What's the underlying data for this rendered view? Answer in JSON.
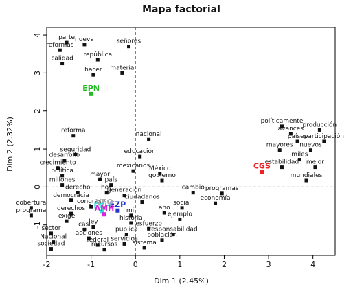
{
  "chart_data": {
    "type": "scatter",
    "title": "Mapa factorial",
    "xlabel": "Dim 1 (2.45%)",
    "ylabel": "Dim 2 (2.32%)",
    "xlim": [
      -2,
      4.5
    ],
    "ylim": [
      -1.8,
      4.2
    ],
    "xticks": [
      "-2",
      "-1",
      "0",
      "1",
      "2",
      "3",
      "4"
    ],
    "yticks": [
      "-1",
      "0",
      "1",
      "2",
      "3",
      "4"
    ],
    "reference_lines": {
      "x": 0,
      "y": 0,
      "style": "dashed"
    },
    "words": [
      {
        "label": "parte",
        "x": -1.55,
        "y": 3.8
      },
      {
        "label": "nueva",
        "x": -1.15,
        "y": 3.75
      },
      {
        "label": "señores",
        "x": -0.15,
        "y": 3.7
      },
      {
        "label": "reformas",
        "x": -1.7,
        "y": 3.6
      },
      {
        "label": "república",
        "x": -0.85,
        "y": 3.35
      },
      {
        "label": "calidad",
        "x": -1.65,
        "y": 3.25
      },
      {
        "label": "hacer",
        "x": -0.95,
        "y": 2.95
      },
      {
        "label": "materia",
        "x": -0.3,
        "y": 3.0
      },
      {
        "label": "reforma",
        "x": -1.4,
        "y": 1.35
      },
      {
        "label": "nacional",
        "x": 0.3,
        "y": 1.25
      },
      {
        "label": "seguridad",
        "x": -1.35,
        "y": 0.85
      },
      {
        "label": "educación",
        "x": 0.1,
        "y": 0.8
      },
      {
        "label": "desarrollo",
        "x": -1.6,
        "y": 0.7
      },
      {
        "label": "crecimiento",
        "x": -1.75,
        "y": 0.5
      },
      {
        "label": "mexicanos",
        "x": -0.05,
        "y": 0.42
      },
      {
        "label": "política",
        "x": -1.65,
        "y": 0.3
      },
      {
        "label": "México",
        "x": 0.55,
        "y": 0.35
      },
      {
        "label": "mayor",
        "x": -0.8,
        "y": 0.2
      },
      {
        "label": "gobierno",
        "x": 0.6,
        "y": 0.17
      },
      {
        "label": "millones",
        "x": -1.65,
        "y": 0.05
      },
      {
        "label": "país",
        "x": -0.55,
        "y": 0.05
      },
      {
        "label": "derecho",
        "x": -1.3,
        "y": -0.15
      },
      {
        "label": "hoy",
        "x": -0.65,
        "y": -0.15
      },
      {
        "label": "cambio",
        "x": 1.3,
        "y": -0.15
      },
      {
        "label": "programas",
        "x": 1.95,
        "y": -0.17
      },
      {
        "label": "generación",
        "x": -0.25,
        "y": -0.22
      },
      {
        "label": "democracia",
        "x": -1.45,
        "y": -0.35
      },
      {
        "label": "ciudadanos",
        "x": 0.15,
        "y": -0.4
      },
      {
        "label": "economía",
        "x": 1.8,
        "y": -0.43
      },
      {
        "label": "cobertura",
        "x": -2.35,
        "y": -0.55
      },
      {
        "label": "congreso",
        "x": -1.0,
        "y": -0.52
      },
      {
        "label": "social",
        "x": 1.05,
        "y": -0.55
      },
      {
        "label": "año",
        "x": 0.65,
        "y": -0.68
      },
      {
        "label": "derechos",
        "x": -1.45,
        "y": -0.7
      },
      {
        "label": "programa",
        "x": -2.35,
        "y": -0.75
      },
      {
        "label": "mil",
        "x": -0.1,
        "y": -0.75
      },
      {
        "label": "ejemplo",
        "x": 1.0,
        "y": -0.85
      },
      {
        "label": "exige",
        "x": -1.55,
        "y": -0.9
      },
      {
        "label": "historia",
        "x": -0.1,
        "y": -0.95
      },
      {
        "label": "ley",
        "x": -0.95,
        "y": -1.05
      },
      {
        "label": "esfuerzo",
        "x": 0.3,
        "y": -1.1
      },
      {
        "label": "casi",
        "x": -1.15,
        "y": -1.12
      },
      {
        "label": "sector",
        "x": -1.9,
        "y": -1.22
      },
      {
        "label": "publica",
        "x": -0.2,
        "y": -1.25
      },
      {
        "label": "responsabilidad",
        "x": 0.85,
        "y": -1.25
      },
      {
        "label": "acciones",
        "x": -1.05,
        "y": -1.35
      },
      {
        "label": "población",
        "x": 0.6,
        "y": -1.4
      },
      {
        "label": "Nacional",
        "x": -1.85,
        "y": -1.45
      },
      {
        "label": "federal",
        "x": -0.85,
        "y": -1.53
      },
      {
        "label": "servicios",
        "x": -0.25,
        "y": -1.5
      },
      {
        "label": "sociedad",
        "x": -1.9,
        "y": -1.63
      },
      {
        "label": "recursos",
        "x": -0.7,
        "y": -1.65
      },
      {
        "label": "sistema",
        "x": 0.2,
        "y": -1.6
      },
      {
        "label": "políticamente",
        "x": 3.3,
        "y": 1.6
      },
      {
        "label": "producción",
        "x": 4.15,
        "y": 1.5
      },
      {
        "label": "avances",
        "x": 3.5,
        "y": 1.4
      },
      {
        "label": "países",
        "x": 3.65,
        "y": 1.2
      },
      {
        "label": "participación",
        "x": 4.25,
        "y": 1.2
      },
      {
        "label": "mayores",
        "x": 3.25,
        "y": 0.97
      },
      {
        "label": "nuevos",
        "x": 3.95,
        "y": 0.97
      },
      {
        "label": "miles",
        "x": 3.7,
        "y": 0.72
      },
      {
        "label": "estabilidad",
        "x": 3.3,
        "y": 0.52
      },
      {
        "label": "mejor",
        "x": 4.05,
        "y": 0.52
      },
      {
        "label": "mundiales",
        "x": 3.85,
        "y": 0.17
      }
    ],
    "candidates": [
      {
        "label": "EPN",
        "x": -1.0,
        "y": 2.45,
        "color": "#22bb22"
      },
      {
        "label": "CGS",
        "x": 2.85,
        "y": 0.4,
        "color": "#ee2222"
      },
      {
        "label": "EZP",
        "x": -0.4,
        "y": -0.62,
        "color": "#2233cc"
      },
      {
        "label": "VFQ",
        "x": -0.7,
        "y": -0.55,
        "color": "#aaaaaa"
      },
      {
        "label": "FCH",
        "x": -0.75,
        "y": -0.65,
        "color": "#33dddd"
      },
      {
        "label": "AMH",
        "x": -0.7,
        "y": -0.72,
        "color": "#dd22dd"
      }
    ]
  }
}
